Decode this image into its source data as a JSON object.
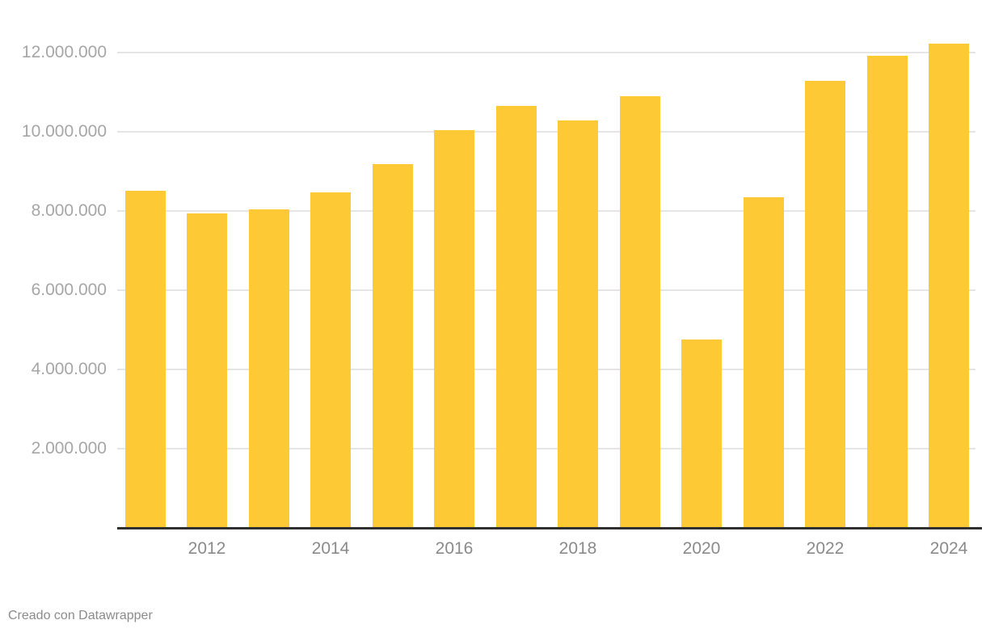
{
  "chart_data": {
    "type": "bar",
    "title": "",
    "xlabel": "",
    "ylabel": "",
    "categories": [
      2011,
      2012,
      2013,
      2014,
      2015,
      2016,
      2017,
      2018,
      2019,
      2020,
      2021,
      2022,
      2023,
      2024
    ],
    "values": [
      8500000,
      7940000,
      8040000,
      8470000,
      9180000,
      10040000,
      10650000,
      10290000,
      10900000,
      4760000,
      8350000,
      11290000,
      11920000,
      12220000
    ],
    "ylim": [
      0,
      12600000
    ],
    "grid": true,
    "legend_position": "none",
    "y_ticks": [
      {
        "value": 2000000,
        "label": "2.000.000"
      },
      {
        "value": 4000000,
        "label": "4.000.000"
      },
      {
        "value": 6000000,
        "label": "6.000.000"
      },
      {
        "value": 8000000,
        "label": "8.000.000"
      },
      {
        "value": 10000000,
        "label": "10.000.000"
      },
      {
        "value": 12000000,
        "label": "12.000.000"
      }
    ],
    "x_tick_labels": [
      "2012",
      "2014",
      "2016",
      "2018",
      "2020",
      "2022",
      "2024"
    ]
  },
  "colors": {
    "bar": "#fdc935",
    "gridline": "#e5e5e5",
    "axis_line": "#303030",
    "y_label": "#a6a6a6",
    "x_label": "#8a8a8a",
    "attribution": "#8b8b8b",
    "background": "#ffffff"
  },
  "footer": {
    "attribution": "Creado con Datawrapper"
  }
}
